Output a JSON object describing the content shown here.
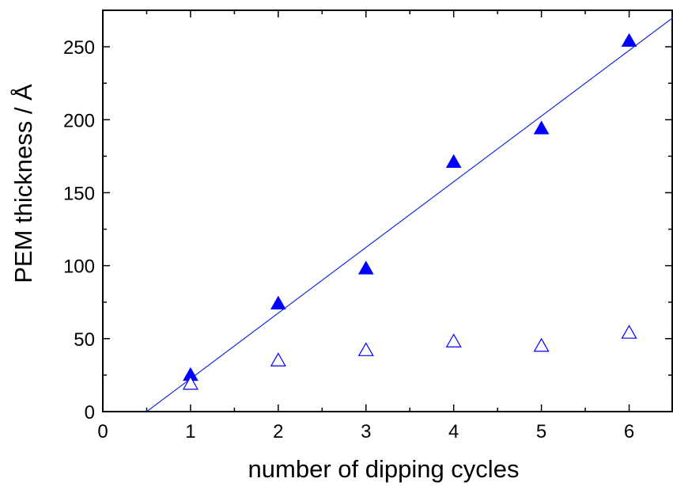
{
  "chart_data": {
    "type": "scatter",
    "xlabel": "number of dipping cycles",
    "ylabel": "PEM thickness / Å",
    "xlim": [
      0,
      6.5
    ],
    "ylim": [
      0,
      275
    ],
    "x_ticks": [
      0,
      1,
      2,
      3,
      4,
      5,
      6
    ],
    "y_ticks": [
      0,
      50,
      100,
      150,
      200,
      250
    ],
    "x_tick_labels": [
      "0",
      "1",
      "2",
      "3",
      "4",
      "5",
      "6"
    ],
    "y_tick_labels": [
      "0",
      "50",
      "100",
      "150",
      "200",
      "250"
    ],
    "grid": false,
    "legend": "none",
    "colors": {
      "marker": "#0000ff",
      "fit_line": "#1a2bd4",
      "axes": "#000000"
    },
    "series": [
      {
        "style": "filled-triangle",
        "x": [
          1,
          2,
          3,
          4,
          5,
          6
        ],
        "y": [
          25,
          74,
          98,
          171,
          194,
          254
        ]
      },
      {
        "style": "open-triangle",
        "x": [
          1,
          2,
          3,
          4,
          5,
          6
        ],
        "y": [
          19,
          35,
          42,
          48,
          45,
          54
        ]
      }
    ],
    "fit_line": {
      "x": [
        0.5,
        6.5
      ],
      "y": [
        0,
        270
      ]
    }
  }
}
